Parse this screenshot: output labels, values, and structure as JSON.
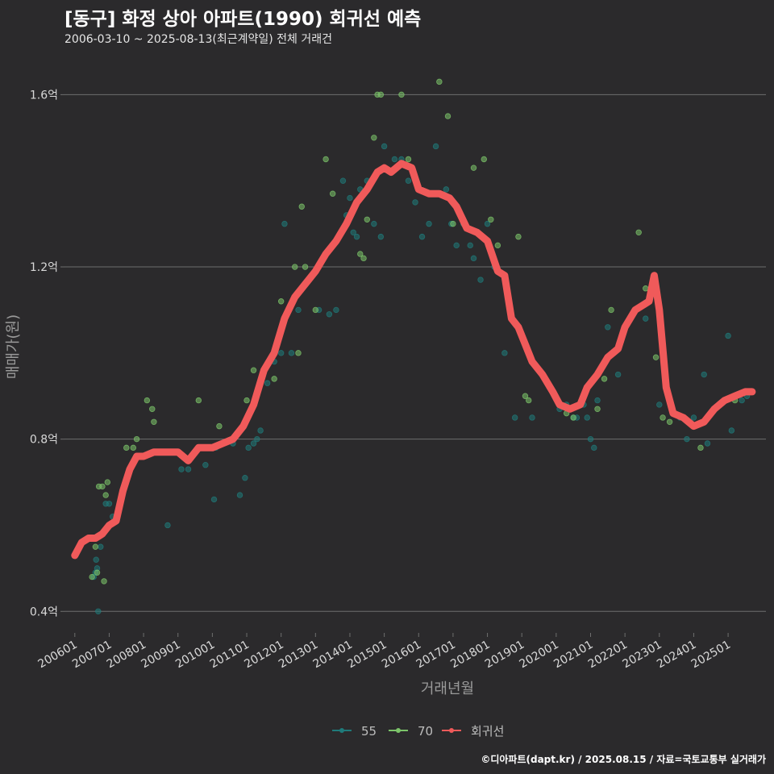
{
  "title": "[동구] 화정 상아 아파트(1990) 회귀선 예측",
  "subtitle": "2006-03-10 ~ 2025-08-13(최근계약일) 전체 거래건",
  "caption": "©디아파트(dapt.kr) / 2025.08.15 / 자료=국토교통부 실거래가",
  "colors": {
    "background": "#2b2a2c",
    "grid": "#6e6e6e",
    "s55": "#1f7a7a",
    "s70": "#7cc46a",
    "trend": "#f05a5a",
    "text": "#d9d9d9"
  },
  "chart_data": {
    "type": "scatter",
    "xlabel": "거래년월",
    "ylabel": "매매가(원)",
    "ylim": [
      0.35,
      1.67
    ],
    "xlim": [
      2005.7,
      2026.1
    ],
    "yticks": [
      {
        "value": 0.4,
        "label": "0.4억"
      },
      {
        "value": 0.8,
        "label": "0.8억"
      },
      {
        "value": 1.2,
        "label": "1.2억"
      },
      {
        "value": 1.6,
        "label": "1.6억"
      }
    ],
    "xticks": [
      {
        "value": 2006.0,
        "label": "200601"
      },
      {
        "value": 2007.0,
        "label": "200701"
      },
      {
        "value": 2008.0,
        "label": "200801"
      },
      {
        "value": 2009.0,
        "label": "200901"
      },
      {
        "value": 2010.0,
        "label": "201001"
      },
      {
        "value": 2011.0,
        "label": "201101"
      },
      {
        "value": 2012.0,
        "label": "201201"
      },
      {
        "value": 2013.0,
        "label": "201301"
      },
      {
        "value": 2014.0,
        "label": "201401"
      },
      {
        "value": 2015.0,
        "label": "201501"
      },
      {
        "value": 2016.0,
        "label": "201601"
      },
      {
        "value": 2017.0,
        "label": "201701"
      },
      {
        "value": 2018.0,
        "label": "201801"
      },
      {
        "value": 2019.0,
        "label": "201901"
      },
      {
        "value": 2020.0,
        "label": "202001"
      },
      {
        "value": 2021.0,
        "label": "202101"
      },
      {
        "value": 2022.0,
        "label": "202201"
      },
      {
        "value": 2023.0,
        "label": "202301"
      },
      {
        "value": 2024.0,
        "label": "202401"
      },
      {
        "value": 2025.0,
        "label": "202501"
      }
    ],
    "legend": [
      {
        "name": "55",
        "key": "s55"
      },
      {
        "name": "70",
        "key": "s70"
      },
      {
        "name": "회귀선",
        "key": "trend"
      }
    ],
    "series": [
      {
        "name": "55",
        "color_key": "s55",
        "points": [
          [
            2006.55,
            0.48
          ],
          [
            2006.6,
            0.49
          ],
          [
            2006.62,
            0.52
          ],
          [
            2006.65,
            0.5
          ],
          [
            2006.68,
            0.4
          ],
          [
            2006.75,
            0.55
          ],
          [
            2006.9,
            0.65
          ],
          [
            2007.0,
            0.65
          ],
          [
            2007.1,
            0.62
          ],
          [
            2008.7,
            0.6
          ],
          [
            2009.1,
            0.73
          ],
          [
            2009.3,
            0.73
          ],
          [
            2009.8,
            0.74
          ],
          [
            2010.05,
            0.66
          ],
          [
            2010.1,
            0.78
          ],
          [
            2010.3,
            0.79
          ],
          [
            2010.6,
            0.79
          ],
          [
            2010.8,
            0.67
          ],
          [
            2010.95,
            0.71
          ],
          [
            2011.05,
            0.78
          ],
          [
            2011.2,
            0.79
          ],
          [
            2011.3,
            0.8
          ],
          [
            2011.4,
            0.82
          ],
          [
            2011.6,
            0.93
          ],
          [
            2011.8,
            0.98
          ],
          [
            2012.0,
            1.0
          ],
          [
            2012.1,
            1.3
          ],
          [
            2012.3,
            1.0
          ],
          [
            2012.5,
            1.1
          ],
          [
            2012.6,
            1.15
          ],
          [
            2012.9,
            1.18
          ],
          [
            2013.1,
            1.1
          ],
          [
            2013.4,
            1.09
          ],
          [
            2013.6,
            1.1
          ],
          [
            2013.8,
            1.4
          ],
          [
            2013.9,
            1.32
          ],
          [
            2014.0,
            1.36
          ],
          [
            2014.1,
            1.28
          ],
          [
            2014.2,
            1.27
          ],
          [
            2014.3,
            1.38
          ],
          [
            2014.5,
            1.4
          ],
          [
            2014.7,
            1.3
          ],
          [
            2014.9,
            1.27
          ],
          [
            2015.0,
            1.48
          ],
          [
            2015.3,
            1.45
          ],
          [
            2015.5,
            1.45
          ],
          [
            2015.7,
            1.4
          ],
          [
            2015.9,
            1.35
          ],
          [
            2016.1,
            1.27
          ],
          [
            2016.3,
            1.3
          ],
          [
            2016.5,
            1.48
          ],
          [
            2016.8,
            1.38
          ],
          [
            2016.95,
            1.3
          ],
          [
            2017.1,
            1.25
          ],
          [
            2017.3,
            1.3
          ],
          [
            2017.5,
            1.25
          ],
          [
            2017.6,
            1.22
          ],
          [
            2017.8,
            1.17
          ],
          [
            2018.0,
            1.3
          ],
          [
            2018.2,
            1.2
          ],
          [
            2018.5,
            1.0
          ],
          [
            2018.8,
            0.85
          ],
          [
            2019.3,
            0.85
          ],
          [
            2019.6,
            0.95
          ],
          [
            2019.8,
            0.92
          ],
          [
            2020.1,
            0.87
          ],
          [
            2020.3,
            0.88
          ],
          [
            2020.5,
            0.85
          ],
          [
            2020.6,
            0.85
          ],
          [
            2020.8,
            0.88
          ],
          [
            2020.9,
            0.85
          ],
          [
            2021.0,
            0.8
          ],
          [
            2021.1,
            0.78
          ],
          [
            2021.2,
            0.89
          ],
          [
            2021.5,
            1.06
          ],
          [
            2021.8,
            0.95
          ],
          [
            2022.3,
            1.1
          ],
          [
            2022.6,
            1.08
          ],
          [
            2023.0,
            0.88
          ],
          [
            2023.6,
            0.85
          ],
          [
            2023.8,
            0.8
          ],
          [
            2024.0,
            0.85
          ],
          [
            2024.3,
            0.95
          ],
          [
            2024.4,
            0.79
          ],
          [
            2025.0,
            1.04
          ],
          [
            2025.1,
            0.82
          ],
          [
            2025.4,
            0.89
          ],
          [
            2025.55,
            0.9
          ]
        ]
      },
      {
        "name": "70",
        "color_key": "s70",
        "points": [
          [
            2006.5,
            0.48
          ],
          [
            2006.6,
            0.55
          ],
          [
            2006.65,
            0.49
          ],
          [
            2006.7,
            0.69
          ],
          [
            2006.8,
            0.69
          ],
          [
            2006.85,
            0.47
          ],
          [
            2006.9,
            0.67
          ],
          [
            2006.95,
            0.7
          ],
          [
            2007.5,
            0.78
          ],
          [
            2007.7,
            0.78
          ],
          [
            2007.8,
            0.8
          ],
          [
            2008.1,
            0.89
          ],
          [
            2008.25,
            0.87
          ],
          [
            2008.3,
            0.84
          ],
          [
            2009.6,
            0.89
          ],
          [
            2010.2,
            0.83
          ],
          [
            2011.0,
            0.89
          ],
          [
            2011.2,
            0.96
          ],
          [
            2011.8,
            0.94
          ],
          [
            2012.0,
            1.12
          ],
          [
            2012.4,
            1.2
          ],
          [
            2012.5,
            1.0
          ],
          [
            2012.6,
            1.34
          ],
          [
            2012.7,
            1.2
          ],
          [
            2012.9,
            1.18
          ],
          [
            2013.0,
            1.1
          ],
          [
            2013.3,
            1.45
          ],
          [
            2013.5,
            1.37
          ],
          [
            2014.3,
            1.23
          ],
          [
            2014.4,
            1.22
          ],
          [
            2014.5,
            1.31
          ],
          [
            2014.7,
            1.5
          ],
          [
            2014.8,
            1.6
          ],
          [
            2014.9,
            1.6
          ],
          [
            2015.5,
            1.6
          ],
          [
            2015.7,
            1.45
          ],
          [
            2016.6,
            1.63
          ],
          [
            2016.85,
            1.55
          ],
          [
            2017.0,
            1.3
          ],
          [
            2017.6,
            1.43
          ],
          [
            2017.9,
            1.45
          ],
          [
            2018.1,
            1.31
          ],
          [
            2018.3,
            1.25
          ],
          [
            2018.9,
            1.27
          ],
          [
            2019.1,
            0.9
          ],
          [
            2019.2,
            0.89
          ],
          [
            2020.3,
            0.86
          ],
          [
            2020.5,
            0.85
          ],
          [
            2020.8,
            0.9
          ],
          [
            2021.2,
            0.87
          ],
          [
            2021.4,
            0.94
          ],
          [
            2021.6,
            1.1
          ],
          [
            2022.4,
            1.28
          ],
          [
            2022.6,
            1.15
          ],
          [
            2022.9,
            0.99
          ],
          [
            2023.1,
            0.85
          ],
          [
            2023.3,
            0.84
          ],
          [
            2024.2,
            0.78
          ],
          [
            2025.2,
            0.89
          ],
          [
            2025.5,
            0.91
          ]
        ]
      },
      {
        "name": "회귀선",
        "color_key": "trend",
        "type": "line",
        "points": [
          [
            2006.0,
            0.53
          ],
          [
            2006.2,
            0.56
          ],
          [
            2006.4,
            0.57
          ],
          [
            2006.6,
            0.57
          ],
          [
            2006.8,
            0.58
          ],
          [
            2007.0,
            0.6
          ],
          [
            2007.2,
            0.61
          ],
          [
            2007.4,
            0.68
          ],
          [
            2007.6,
            0.73
          ],
          [
            2007.8,
            0.76
          ],
          [
            2008.0,
            0.76
          ],
          [
            2008.3,
            0.77
          ],
          [
            2008.6,
            0.77
          ],
          [
            2009.0,
            0.77
          ],
          [
            2009.3,
            0.75
          ],
          [
            2009.6,
            0.78
          ],
          [
            2010.0,
            0.78
          ],
          [
            2010.3,
            0.79
          ],
          [
            2010.6,
            0.8
          ],
          [
            2010.9,
            0.83
          ],
          [
            2011.2,
            0.88
          ],
          [
            2011.5,
            0.96
          ],
          [
            2011.8,
            1.0
          ],
          [
            2012.1,
            1.08
          ],
          [
            2012.4,
            1.13
          ],
          [
            2012.7,
            1.16
          ],
          [
            2013.0,
            1.19
          ],
          [
            2013.3,
            1.23
          ],
          [
            2013.6,
            1.26
          ],
          [
            2013.9,
            1.3
          ],
          [
            2014.2,
            1.35
          ],
          [
            2014.5,
            1.38
          ],
          [
            2014.8,
            1.42
          ],
          [
            2015.0,
            1.43
          ],
          [
            2015.2,
            1.42
          ],
          [
            2015.5,
            1.44
          ],
          [
            2015.8,
            1.43
          ],
          [
            2016.0,
            1.38
          ],
          [
            2016.3,
            1.37
          ],
          [
            2016.6,
            1.37
          ],
          [
            2016.9,
            1.36
          ],
          [
            2017.1,
            1.34
          ],
          [
            2017.4,
            1.29
          ],
          [
            2017.7,
            1.28
          ],
          [
            2018.0,
            1.26
          ],
          [
            2018.3,
            1.19
          ],
          [
            2018.5,
            1.18
          ],
          [
            2018.7,
            1.08
          ],
          [
            2018.9,
            1.06
          ],
          [
            2019.1,
            1.02
          ],
          [
            2019.3,
            0.98
          ],
          [
            2019.6,
            0.95
          ],
          [
            2019.9,
            0.91
          ],
          [
            2020.1,
            0.88
          ],
          [
            2020.4,
            0.87
          ],
          [
            2020.7,
            0.88
          ],
          [
            2020.9,
            0.92
          ],
          [
            2021.2,
            0.95
          ],
          [
            2021.5,
            0.99
          ],
          [
            2021.8,
            1.01
          ],
          [
            2022.0,
            1.06
          ],
          [
            2022.3,
            1.1
          ],
          [
            2022.5,
            1.11
          ],
          [
            2022.7,
            1.12
          ],
          [
            2022.85,
            1.18
          ],
          [
            2023.0,
            1.1
          ],
          [
            2023.2,
            0.92
          ],
          [
            2023.4,
            0.86
          ],
          [
            2023.7,
            0.85
          ],
          [
            2024.0,
            0.83
          ],
          [
            2024.3,
            0.84
          ],
          [
            2024.6,
            0.87
          ],
          [
            2024.9,
            0.89
          ],
          [
            2025.2,
            0.9
          ],
          [
            2025.5,
            0.91
          ],
          [
            2025.7,
            0.91
          ]
        ]
      }
    ]
  }
}
